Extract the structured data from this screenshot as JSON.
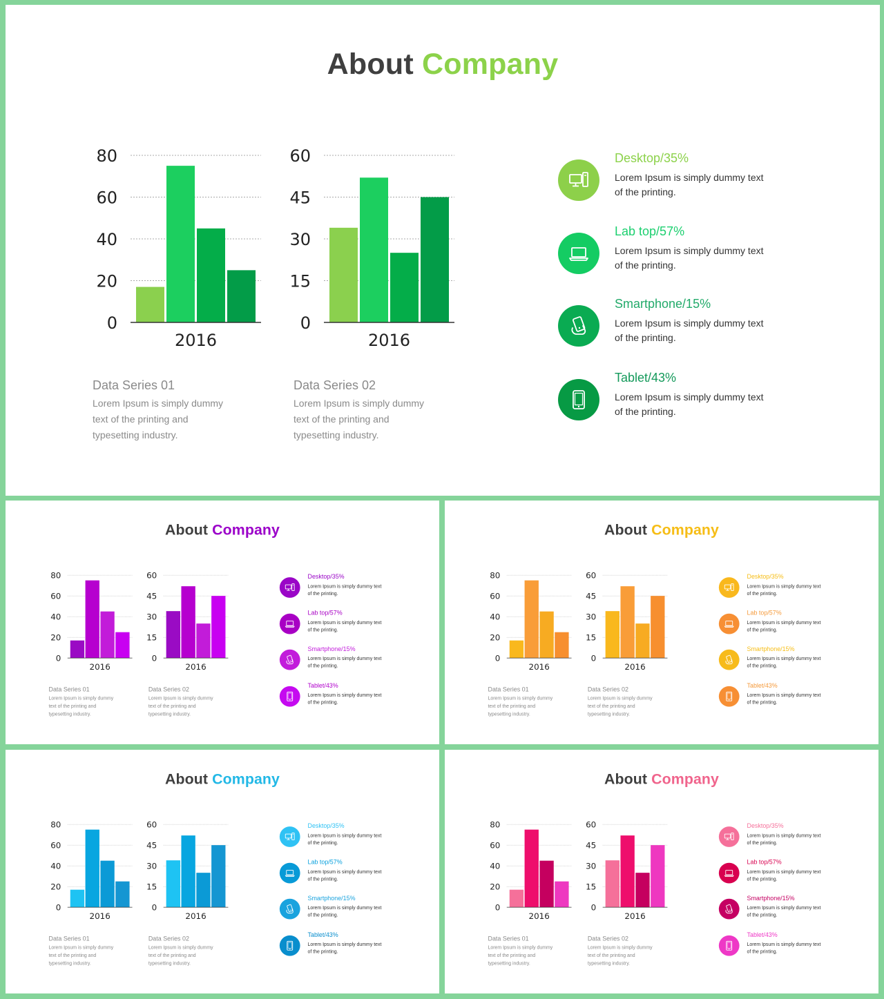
{
  "slides": [
    {
      "title_part1": "About",
      "title_part2": "Company",
      "title_color": "#8cd24a",
      "chart_colors": [
        "#8bd04e",
        "#1ccf5f",
        "#04ad49",
        "#039c48"
      ],
      "circle_colors": [
        "#8dd04a",
        "#14cc63",
        "#0aab52",
        "#079a44"
      ],
      "legend_text_colors": [
        "#8cd24a",
        "#1ccf6f",
        "#22aa6a",
        "#13995a"
      ]
    },
    {
      "title_part1": "About",
      "title_part2": "Company",
      "title_color": "#9b00c9",
      "chart_colors": [
        "#9a0bc4",
        "#b600cf",
        "#c21cd9",
        "#c800f1"
      ],
      "circle_colors": [
        "#9a06c7",
        "#a800c4",
        "#c21cdb",
        "#c50af0"
      ],
      "legend_text_colors": [
        "#9a06c7",
        "#a800c4",
        "#c21cdb",
        "#b000cc"
      ]
    },
    {
      "title_part1": "About",
      "title_part2": "Company",
      "title_color": "#f6bd16",
      "chart_colors": [
        "#f9b81d",
        "#f99d38",
        "#f7ab22",
        "#f78f2f"
      ],
      "circle_colors": [
        "#f9b81d",
        "#f78f34",
        "#f7bb1b",
        "#f78f34"
      ],
      "legend_text_colors": [
        "#f6bd16",
        "#f59a3b",
        "#f6bd16",
        "#f59a3b"
      ]
    },
    {
      "title_part1": "About",
      "title_part2": "Company",
      "title_color": "#22b8e6",
      "chart_colors": [
        "#1ec3f3",
        "#08a6e0",
        "#0b9ad6",
        "#1596d2"
      ],
      "circle_colors": [
        "#2fc2f4",
        "#089ad7",
        "#1aa3de",
        "#098ecd"
      ],
      "legend_text_colors": [
        "#2fc2f4",
        "#08a0dd",
        "#1aa3de",
        "#098ecd"
      ]
    },
    {
      "title_part1": "About",
      "title_part2": "Company",
      "title_color": "#f0648c",
      "chart_colors": [
        "#f5709a",
        "#ee0e6c",
        "#c5005f",
        "#ee38c0"
      ],
      "circle_colors": [
        "#f5709a",
        "#d8004f",
        "#c50062",
        "#ee38c6"
      ],
      "legend_text_colors": [
        "#f5709a",
        "#d8004f",
        "#c50062",
        "#ee38c6"
      ]
    }
  ],
  "chart_data": [
    {
      "type": "bar",
      "categories": [
        "2016"
      ],
      "series": [
        {
          "values": [
            17
          ]
        },
        {
          "values": [
            75
          ]
        },
        {
          "values": [
            45
          ]
        },
        {
          "values": [
            25
          ]
        }
      ],
      "title": "",
      "xlabel": "",
      "ylabel": "",
      "yticks": [
        "0",
        "20",
        "40",
        "60",
        "80"
      ],
      "ylim": [
        0,
        80
      ],
      "grid": true
    },
    {
      "type": "bar",
      "categories": [
        "2016"
      ],
      "series": [
        {
          "values": [
            34
          ]
        },
        {
          "values": [
            52
          ]
        },
        {
          "values": [
            25
          ]
        },
        {
          "values": [
            45
          ]
        }
      ],
      "title": "",
      "xlabel": "",
      "ylabel": "",
      "yticks": [
        "0",
        "15",
        "30",
        "45",
        "60"
      ],
      "ylim": [
        0,
        60
      ],
      "grid": true
    }
  ],
  "captions": [
    {
      "heading": "Data Series 01",
      "line1": "Lorem Ipsum is simply dummy",
      "line2": "text of the printing and",
      "line3": "typesetting industry."
    },
    {
      "heading": "Data Series 02",
      "line1": "Lorem Ipsum is simply dummy",
      "line2": "text of the printing and",
      "line3": "typesetting industry."
    }
  ],
  "legend": [
    {
      "label": "Desktop/35%",
      "line1": "Lorem Ipsum is simply dummy text",
      "line2": "of the printing.",
      "icon": "desktop-icon"
    },
    {
      "label": "Lab top/57%",
      "line1": "Lorem Ipsum is simply dummy text",
      "line2": "of the printing.",
      "icon": "laptop-icon"
    },
    {
      "label": "Smartphone/15%",
      "line1": "Lorem Ipsum is simply dummy text",
      "line2": "of the printing.",
      "icon": "smartphone-hand-icon"
    },
    {
      "label": "Tablet/43%",
      "line1": "Lorem Ipsum is simply dummy text",
      "line2": "of the printing.",
      "icon": "tablet-icon"
    }
  ]
}
